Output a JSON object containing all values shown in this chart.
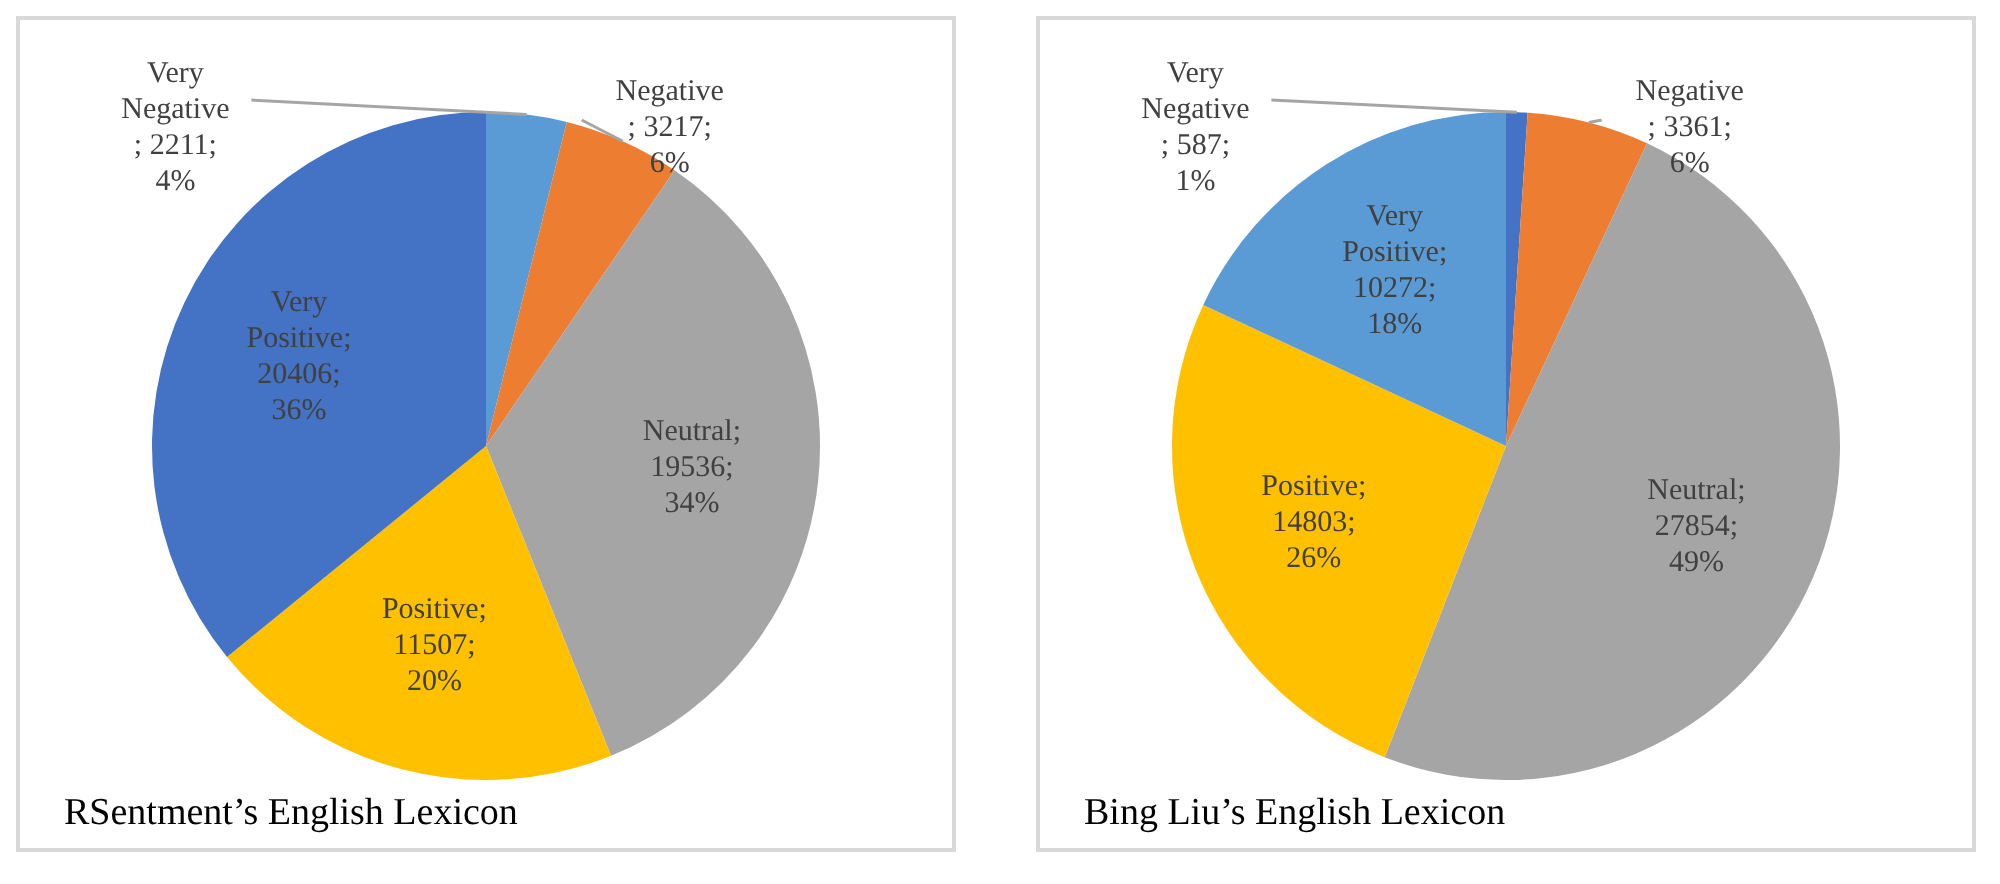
{
  "chart_data": [
    {
      "type": "pie",
      "title": "RSentment’s English Lexicon",
      "categories": [
        "Very Negative",
        "Negative",
        "Neutral",
        "Positive",
        "Very Positive"
      ],
      "values": [
        2211,
        3217,
        19536,
        11507,
        20406
      ],
      "colors": [
        "#5b9bd5",
        "#ed7d31",
        "#a5a5a5",
        "#ffc000",
        "#4472c4"
      ],
      "value_labels": [
        "; 2211; 4%",
        "; 3217; 6%",
        "; 19536; 34%",
        "; 11507; 20%",
        "; 20406; 36%"
      ],
      "legend": false
    },
    {
      "type": "pie",
      "title": "Bing Liu’s English Lexicon",
      "categories": [
        "Very Negative",
        "Negative",
        "Neutral",
        "Positive",
        "Very Positive"
      ],
      "values": [
        587,
        3361,
        27854,
        14803,
        10272
      ],
      "colors": [
        "#4472c4",
        "#ed7d31",
        "#a5a5a5",
        "#ffc000",
        "#5b9bd5"
      ],
      "value_labels": [
        "; 587; 1%",
        "; 3361; 6%",
        "; 27854; 49%",
        "; 14803; 26%",
        "; 10272; 18%"
      ],
      "legend": false
    }
  ]
}
